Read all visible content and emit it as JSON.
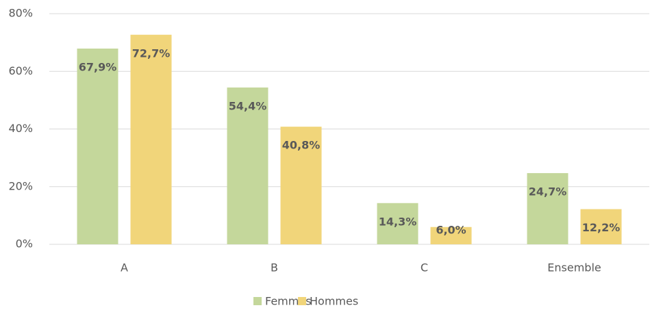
{
  "chart_data": {
    "type": "bar",
    "categories": [
      "A",
      "B",
      "C",
      "Ensemble"
    ],
    "series": [
      {
        "name": "Femmes",
        "color": "#c4d79b",
        "values": [
          67.9,
          54.4,
          14.3,
          24.7
        ],
        "value_labels": [
          "67,9%",
          "54,4%",
          "14,3%",
          "24,7%"
        ]
      },
      {
        "name": "Hommes",
        "color": "#f1d57a",
        "values": [
          72.7,
          40.8,
          6.0,
          12.2
        ],
        "value_labels": [
          "72,7%",
          "40,8%",
          "6,0%",
          "12,2%"
        ]
      }
    ],
    "ylim": [
      0,
      80
    ],
    "yticks": [
      {
        "value": 0,
        "label": "0%"
      },
      {
        "value": 20,
        "label": "20%"
      },
      {
        "value": 40,
        "label": "40%"
      },
      {
        "value": 60,
        "label": "60%"
      },
      {
        "value": 80,
        "label": "80%"
      }
    ],
    "grid": true,
    "legend": "bottom"
  }
}
